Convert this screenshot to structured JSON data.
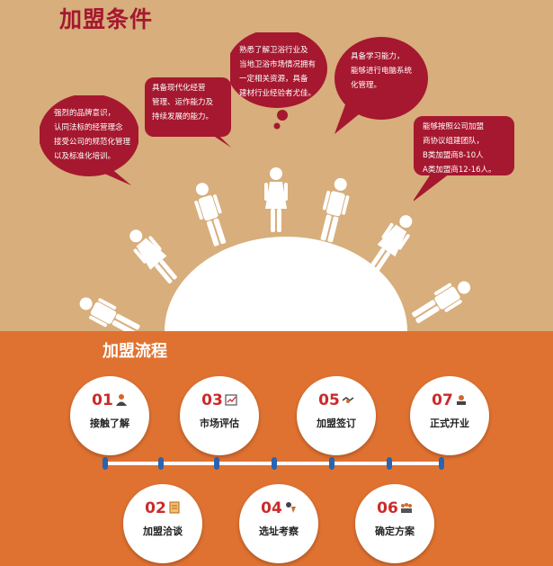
{
  "conditions": {
    "title": "加盟条件",
    "bubbles": [
      {
        "text": "强烈的品牌意识，\n认同法标的经营理念\n接受公司的规范化管理\n以及标准化培训。"
      },
      {
        "text": "具备现代化经营\n管理、运作能力及\n持续发展的能力。"
      },
      {
        "text": "熟悉了解卫浴行业及\n当地卫浴市场情况拥有\n一定相关资源，具备\n建材行业经验者尤佳。"
      },
      {
        "text": "具备学习能力，\n能够进行电脑系统\n化管理。"
      },
      {
        "text": "能够按照公司加盟\n商协议组建团队，\nB类加盟商8-10人\nA类加盟商12-16人。"
      }
    ]
  },
  "process": {
    "title": "加盟流程",
    "steps": [
      {
        "num": "01",
        "label": "接触了解",
        "icon": "person-icon"
      },
      {
        "num": "03",
        "label": "市场评估",
        "icon": "chart-icon"
      },
      {
        "num": "05",
        "label": "加盟签订",
        "icon": "handshake-icon"
      },
      {
        "num": "07",
        "label": "正式开业",
        "icon": "open-icon"
      },
      {
        "num": "02",
        "label": "加盟洽谈",
        "icon": "document-icon"
      },
      {
        "num": "04",
        "label": "选址考察",
        "icon": "location-icon"
      },
      {
        "num": "06",
        "label": "确定方案",
        "icon": "team-icon"
      }
    ]
  },
  "colors": {
    "bubble": "#a5182f",
    "top_bg": "#d7ae7c",
    "bottom_bg": "#e07231",
    "accent": "#cc2a2a",
    "timeline_dot": "#2a64b0"
  }
}
